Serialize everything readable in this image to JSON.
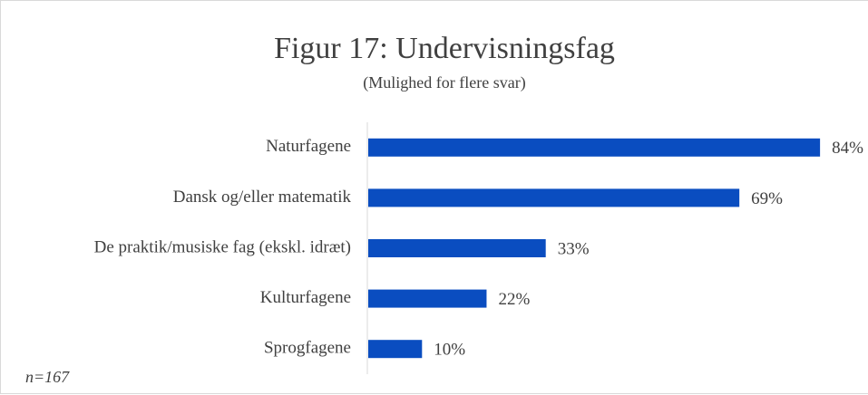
{
  "chart_data": {
    "type": "bar",
    "orientation": "horizontal",
    "title": "Figur 17: Undervisningsfag",
    "subtitle": "(Mulighed for flere svar)",
    "categories": [
      "Naturfagene",
      "Dansk og/eller matematik",
      "De praktik/musiske fag (ekskl. idræt)",
      "Kulturfagene",
      "Sprogfagene"
    ],
    "values": [
      84,
      69,
      33,
      22,
      10
    ],
    "value_labels": [
      "84%",
      "69%",
      "33%",
      "22%",
      "10%"
    ],
    "color": "#0a4dc0",
    "note": "n=167"
  }
}
